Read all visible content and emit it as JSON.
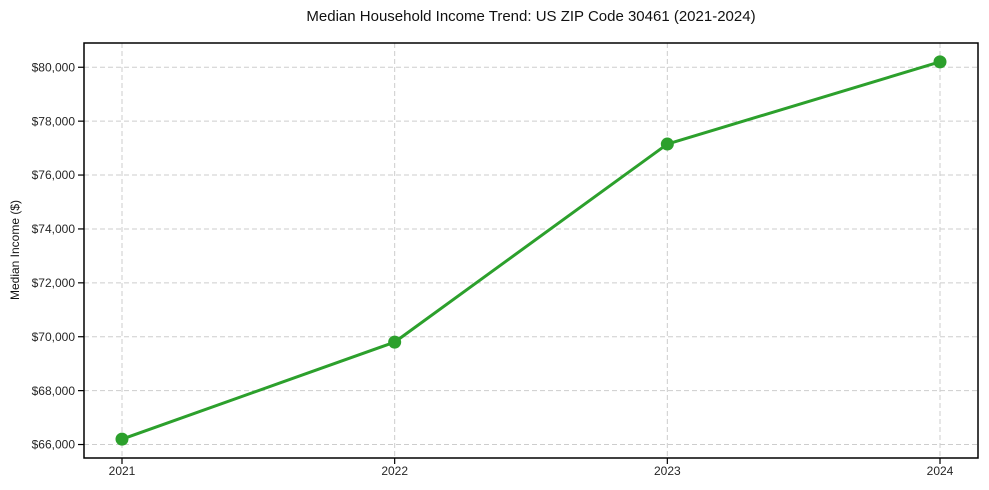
{
  "chart_data": {
    "type": "line",
    "title": "Median Household Income Trend: US ZIP Code 30461 (2021-2024)",
    "xlabel": "",
    "ylabel": "Median Income ($)",
    "categories": [
      "2021",
      "2022",
      "2023",
      "2024"
    ],
    "series": [
      {
        "name": "median-household-income",
        "values": [
          66200,
          69800,
          77150,
          80200
        ],
        "color": "#2ca02c",
        "marker": "circle"
      }
    ],
    "ylim": [
      65500,
      80900
    ],
    "yticks": [
      66000,
      68000,
      70000,
      72000,
      74000,
      76000,
      78000,
      80000
    ],
    "ytick_labels": [
      "$66,000",
      "$68,000",
      "$70,000",
      "$72,000",
      "$74,000",
      "$76,000",
      "$78,000",
      "$80,000"
    ],
    "grid": true,
    "grid_style": "dashed",
    "grid_color": "#cdcdcd",
    "frame_color": "#000000",
    "background_color": "#ffffff",
    "legend_position": "none"
  }
}
